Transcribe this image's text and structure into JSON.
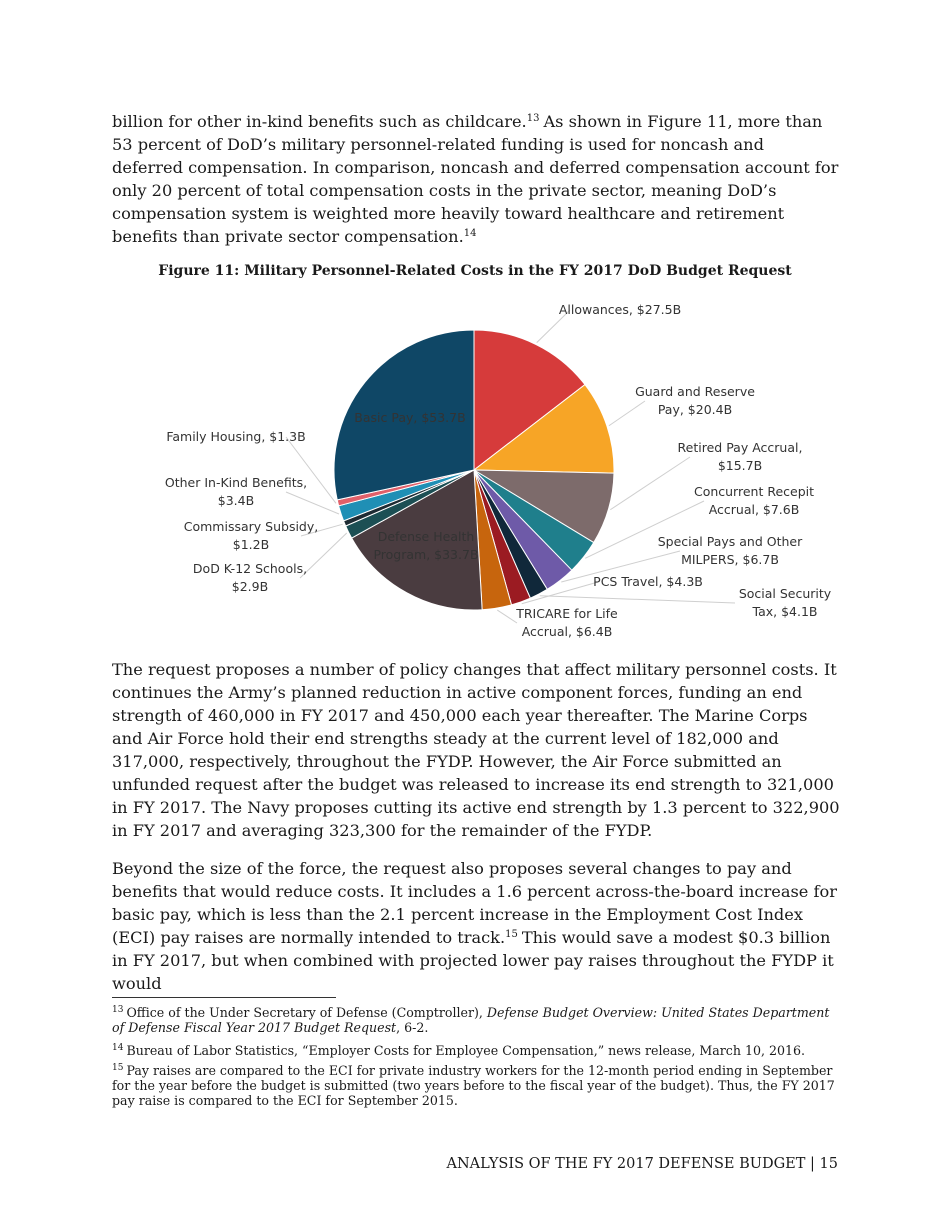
{
  "paragraph_1": [
    "billion for other in-kind benefits such as childcare.",
    "13",
    "As shown in Figure 11, more than 53 percent of DoD’s military personnel-related funding is used for noncash and deferred compensation. In comparison, noncash and deferred compensation account for only 20 percent of total compensation costs in the private sector, meaning DoD’s compensation system is weighted more heavily toward healthcare and retirement benefits than private sector compensation.",
    "14"
  ],
  "chart_data": {
    "type": "pie",
    "title": "Figure 11: Military Personnel-Related Costs in the FY 2017 DoD Budget Request",
    "categories": [
      "Allowances, $27.5B",
      "Guard and Reserve Pay, $20.4B",
      "Retired Pay Accrual, $15.7B",
      "Concurrent Recepit Accrual, $7.6B",
      "Special Pays and Other MILPERS, $6.7B",
      "Social Security Tax, $4.1B",
      "PCS Travel, $4.3B",
      "TRICARE for Life Accrual, $6.4B",
      "Defense Health Program, $33.7B",
      "DoD K-12 Schools, $2.9B",
      "Commissary Subsidy, $1.2B",
      "Other In-Kind Benefits, $3.4B",
      "Family Housing, $1.3B",
      "Basic Pay, $53.7B"
    ],
    "values": [
      27.5,
      20.4,
      15.7,
      7.6,
      6.7,
      4.1,
      4.3,
      6.4,
      33.7,
      2.9,
      1.2,
      3.4,
      1.3,
      53.7
    ],
    "colors": [
      "#d63b3b",
      "#f7a526",
      "#7d6b6b",
      "#1f7f8c",
      "#6e5aa8",
      "#10283a",
      "#9b1b22",
      "#c7650d",
      "#4a3c40",
      "#1c4f54",
      "#1e2b33",
      "#1f8fb5",
      "#e0606a",
      "#0f4766"
    ]
  },
  "paragraph_2": "The request proposes a number of policy changes that affect military personnel costs. It continues the Army’s planned reduction in active component forces, funding an end strength of 460,000 in FY 2017 and 450,000 each year thereafter. The Marine Corps and Air Force hold their end strengths steady at the current level of 182,000 and 317,000, respectively, throughout the FYDP. However, the Air Force submitted an unfunded request after the budget was released to increase its end strength to 321,000 in FY 2017. The Navy proposes cutting its active end strength by 1.3 percent to 322,900 in FY 2017 and averaging 323,300 for the remainder of the FYDP.",
  "paragraph_3": [
    "Beyond the size of the force, the request also proposes several changes to pay and benefits that would reduce costs. It includes a 1.6 percent across-the-board increase for basic pay, which is less than the 2.1 percent increase in the Employment Cost Index (ECI) pay raises are normally intended to track.",
    "15",
    "This would save a modest $0.3 billion in FY 2017, but when combined with projected lower pay raises throughout the FYDP it would"
  ],
  "footnotes": [
    {
      "number": "13",
      "text": "Office of the Under Secretary of Defense (Comptroller), ",
      "italic": "Defense Budget Overview: United States Department of Defense Fiscal Year 2017 Budget Request",
      "after": ", 6-2."
    },
    {
      "number": "14",
      "text": "Bureau of Labor Statistics, “Employer Costs for Employee Compensation,” news release, March 10, 2016."
    },
    {
      "number": "15",
      "text": "Pay raises are compared to the ECI for private industry workers for the 12-month period ending in September for the year before the budget is submitted (two years before to the fiscal year of the budget). Thus, the FY 2017 pay raise is compared to the ECI for September 2015."
    }
  ],
  "footer": "ANALYSIS OF THE FY 2017 DEFENSE BUDGET | 15"
}
